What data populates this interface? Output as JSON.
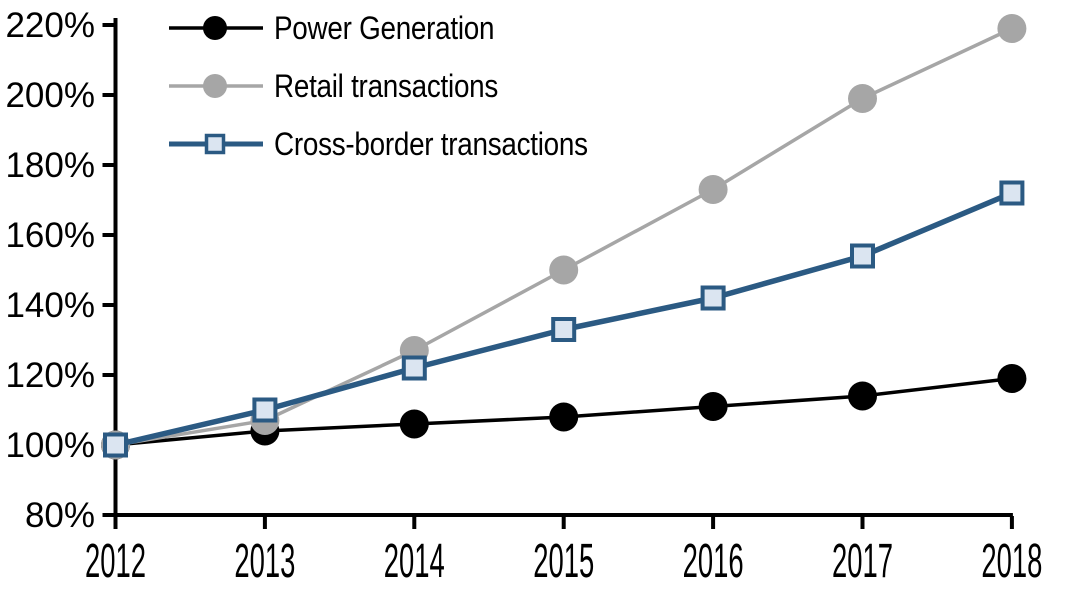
{
  "chart_data": {
    "type": "line",
    "title": "",
    "categories": [
      "2012",
      "2013",
      "2014",
      "2015",
      "2016",
      "2017",
      "2018"
    ],
    "series": [
      {
        "name": "Power Generation",
        "color": "#000000",
        "marker": "circle",
        "marker_fill": "#000000",
        "line_width": 3.5,
        "values": [
          100,
          104,
          106,
          108,
          111,
          114,
          119
        ]
      },
      {
        "name": "Retail transactions",
        "color": "#A6A6A6",
        "marker": "circle",
        "marker_fill": "#A6A6A6",
        "line_width": 3.5,
        "values": [
          100,
          107,
          127,
          150,
          173,
          199,
          219
        ]
      },
      {
        "name": "Cross-border transactions",
        "color": "#2B5A83",
        "marker": "square",
        "marker_fill": "#DBE5F1",
        "line_width": 5.5,
        "values": [
          100,
          110,
          122,
          133,
          142,
          154,
          172
        ]
      }
    ],
    "xlabel": "",
    "ylabel": "",
    "ylim": [
      80,
      220
    ],
    "ytick_step": 20,
    "ytick_suffix": "%",
    "grid": false,
    "legend_position": "top-left",
    "axis_color": "#000000",
    "background": "#FFFFFF"
  }
}
